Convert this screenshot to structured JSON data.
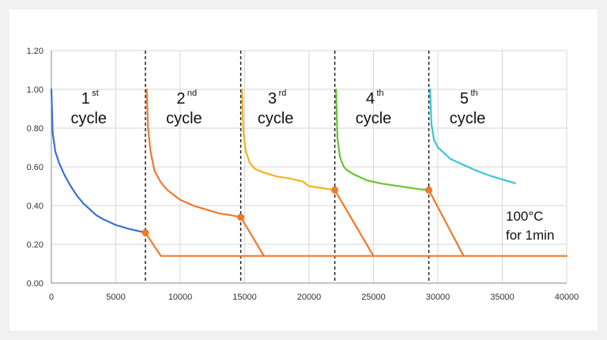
{
  "chart_data": {
    "type": "line",
    "title": "",
    "xlabel": "",
    "ylabel": "",
    "xlim": [
      0,
      40000
    ],
    "ylim": [
      0,
      1.2
    ],
    "x_ticks": [
      "0",
      "5000",
      "10000",
      "15000",
      "20000",
      "25000",
      "30000",
      "35000",
      "40000"
    ],
    "y_ticks": [
      "0.00",
      "0.20",
      "0.40",
      "0.60",
      "0.80",
      "1.00",
      "1.20"
    ],
    "grid": true,
    "cycle_boundaries": [
      7300,
      14700,
      22000,
      29300
    ],
    "series": [
      {
        "color": "#3a6fd8",
        "x": [
          0,
          100,
          300,
          600,
          1000,
          1500,
          2000,
          2500,
          3000,
          3500,
          4000,
          5000,
          6000,
          7000,
          7300
        ],
        "y": [
          1.0,
          0.78,
          0.68,
          0.62,
          0.56,
          0.5,
          0.45,
          0.41,
          0.38,
          0.35,
          0.33,
          0.3,
          0.28,
          0.265,
          0.26
        ]
      },
      {
        "color": "#ef7a2c",
        "x": [
          7400,
          7500,
          7700,
          8000,
          8500,
          9000,
          10000,
          11000,
          12000,
          13000,
          14000,
          14700
        ],
        "y": [
          1.0,
          0.8,
          0.68,
          0.58,
          0.52,
          0.48,
          0.43,
          0.4,
          0.38,
          0.36,
          0.35,
          0.34
        ]
      },
      {
        "color": "#f2b51a",
        "x": [
          14800,
          14900,
          15100,
          15400,
          15800,
          16500,
          17500,
          18500,
          19500,
          20000,
          21000,
          22000
        ],
        "y": [
          1.0,
          0.78,
          0.68,
          0.62,
          0.59,
          0.57,
          0.55,
          0.54,
          0.525,
          0.5,
          0.49,
          0.48
        ]
      },
      {
        "color": "#6cc22e",
        "x": [
          22100,
          22200,
          22400,
          22700,
          23000,
          23500,
          24500,
          25500,
          26500,
          27500,
          28500,
          29300
        ],
        "y": [
          1.0,
          0.75,
          0.65,
          0.6,
          0.58,
          0.56,
          0.53,
          0.515,
          0.505,
          0.495,
          0.485,
          0.48
        ]
      },
      {
        "color": "#3bc6d6",
        "x": [
          29400,
          29500,
          29700,
          30000,
          30500,
          31000,
          32000,
          33000,
          34000,
          35000,
          36000
        ],
        "y": [
          1.0,
          0.82,
          0.74,
          0.7,
          0.67,
          0.64,
          0.61,
          0.58,
          0.555,
          0.535,
          0.515
        ]
      },
      {
        "color": "#ef7a2c",
        "x": [
          7300,
          8500,
          40000
        ],
        "y": [
          0.26,
          0.14,
          0.14
        ]
      },
      {
        "color": "#ef7a2c",
        "x": [
          14700,
          16500
        ],
        "y": [
          0.34,
          0.14
        ]
      },
      {
        "color": "#ef7a2c",
        "x": [
          22000,
          25000
        ],
        "y": [
          0.48,
          0.14
        ]
      },
      {
        "color": "#ef7a2c",
        "x": [
          29300,
          32000
        ],
        "y": [
          0.48,
          0.14
        ]
      }
    ],
    "markers": [
      {
        "x": 7300,
        "y": 0.26,
        "color": "#ef7a2c"
      },
      {
        "x": 14700,
        "y": 0.34,
        "color": "#ef7a2c"
      },
      {
        "x": 22000,
        "y": 0.48,
        "color": "#ef7a2c"
      },
      {
        "x": 29300,
        "y": 0.48,
        "color": "#ef7a2c"
      }
    ],
    "cycle_labels": [
      {
        "num": "1",
        "sup": "st",
        "word": "cycle",
        "x": 2900
      },
      {
        "num": "2",
        "sup": "nd",
        "word": "cycle",
        "x": 10300
      },
      {
        "num": "3",
        "sup": "rd",
        "word": "cycle",
        "x": 17400
      },
      {
        "num": "4",
        "sup": "th",
        "word": "cycle",
        "x": 25000
      },
      {
        "num": "5",
        "sup": "th",
        "word": "cycle",
        "x": 32300
      }
    ],
    "annotation": {
      "line1": "100°C",
      "line2": "for 1min"
    }
  }
}
